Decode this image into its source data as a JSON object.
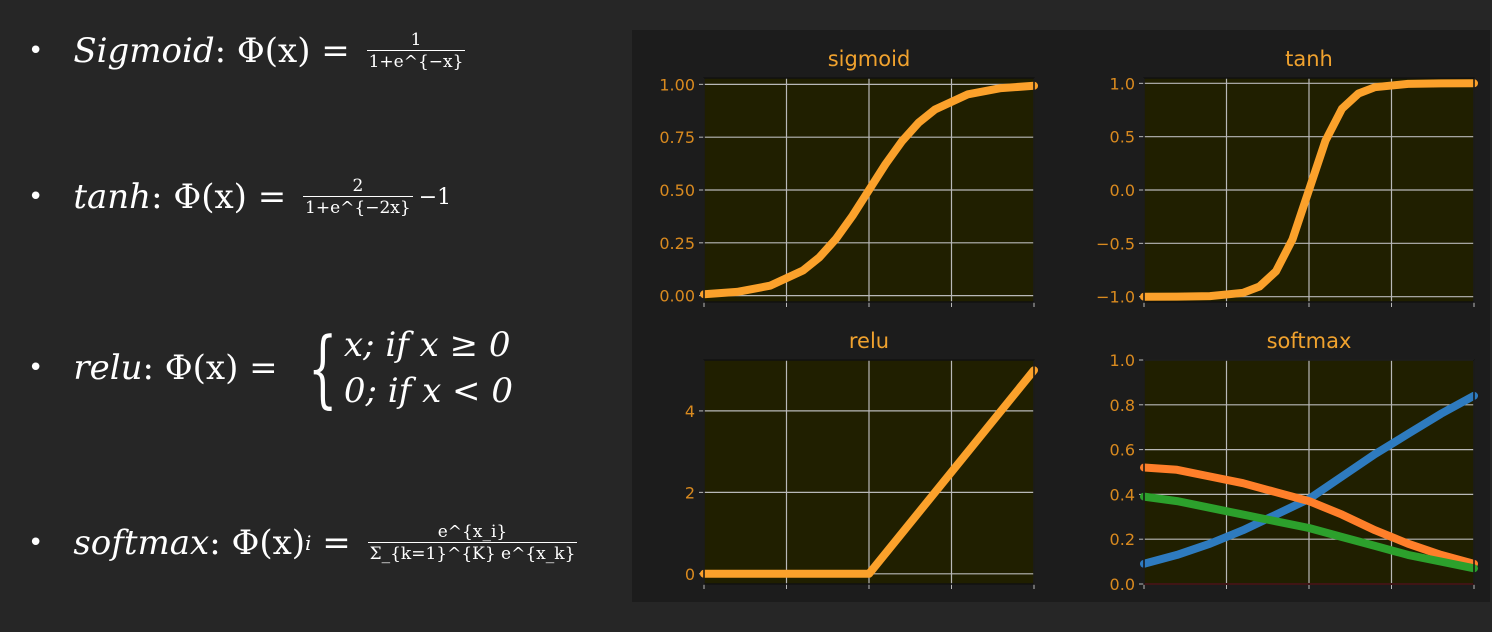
{
  "formulas": {
    "bullet": "•",
    "sigmoid": {
      "label": "Sigmoid",
      "phi": ": Φ(x) = ",
      "num": "1",
      "den": "1+e^{−x}"
    },
    "tanh": {
      "label": "tanh",
      "phi": ": Φ(x) = ",
      "num": "2",
      "den": "1+e^{−2x}",
      "suffix": "−1"
    },
    "relu": {
      "label": "relu",
      "phi": ": Φ(x) = ",
      "case1": "x; if x ≥ 0",
      "case2": "0; if x < 0"
    },
    "softmax": {
      "label": "softmax",
      "phi": ": Φ(x)",
      "sub": "i",
      "eq": " = ",
      "num": "e^{x_i}",
      "den": "Σ_{k=1}^{K} e^{x_k}"
    }
  },
  "colors": {
    "background": "#262626",
    "figure_bg": "#1c1c1c",
    "axes_bg": "#201f00",
    "grid": "#b8b8b8",
    "title_text": "#f0a22e",
    "tick_text": "#d98a1f",
    "orange_line": "#fba12b",
    "blue_line": "#2e7bbf",
    "orange2_line": "#ff7f2a",
    "green_line": "#2ca02c",
    "red_line": "#cc2222"
  },
  "chart_data": [
    {
      "type": "line",
      "title": "sigmoid",
      "xlabel": "",
      "ylabel": "",
      "xlim": [
        -5,
        5
      ],
      "ylim": [
        -0.03,
        1.03
      ],
      "grid": true,
      "yticks": [
        0.0,
        0.25,
        0.5,
        0.75,
        1.0
      ],
      "ytick_labels": [
        "0.00",
        "0.25",
        "0.50",
        "0.75",
        "1.00"
      ],
      "xticks": [
        -5,
        -2.5,
        0,
        2.5,
        5
      ],
      "xtick_labels": [],
      "series": [
        {
          "color": "#fba12b",
          "x": [
            -5,
            -4,
            -3,
            -2,
            -1.5,
            -1,
            -0.5,
            0,
            0.5,
            1,
            1.5,
            2,
            3,
            4,
            5
          ],
          "values": [
            0.007,
            0.018,
            0.047,
            0.119,
            0.182,
            0.269,
            0.378,
            0.5,
            0.622,
            0.731,
            0.818,
            0.881,
            0.953,
            0.982,
            0.993
          ]
        }
      ]
    },
    {
      "type": "line",
      "title": "tanh",
      "xlabel": "",
      "ylabel": "",
      "xlim": [
        -5,
        5
      ],
      "ylim": [
        -1.05,
        1.05
      ],
      "grid": true,
      "yticks": [
        -1.0,
        -0.5,
        0.0,
        0.5,
        1.0
      ],
      "ytick_labels": [
        "−1.0",
        "−0.5",
        "0.0",
        "0.5",
        "1.0"
      ],
      "xticks": [
        -5,
        -2.5,
        0,
        2.5,
        5
      ],
      "xtick_labels": [],
      "series": [
        {
          "color": "#fba12b",
          "x": [
            -5,
            -4,
            -3,
            -2,
            -1.5,
            -1,
            -0.5,
            0,
            0.5,
            1,
            1.5,
            2,
            3,
            4,
            5
          ],
          "values": [
            -1.0,
            -0.999,
            -0.995,
            -0.964,
            -0.905,
            -0.762,
            -0.462,
            0,
            0.462,
            0.762,
            0.905,
            0.964,
            0.995,
            0.999,
            1.0
          ]
        }
      ]
    },
    {
      "type": "line",
      "title": "relu",
      "xlabel": "",
      "ylabel": "",
      "xlim": [
        -5,
        5
      ],
      "ylim": [
        -0.25,
        5.25
      ],
      "grid": true,
      "yticks": [
        0,
        2,
        4
      ],
      "ytick_labels": [
        "0",
        "2",
        "4"
      ],
      "xticks": [
        -5,
        -2.5,
        0,
        2.5,
        5
      ],
      "xtick_labels": [],
      "series": [
        {
          "color": "#fba12b",
          "x": [
            -5,
            0,
            5
          ],
          "values": [
            0,
            0,
            5
          ]
        }
      ]
    },
    {
      "type": "line",
      "title": "softmax",
      "xlabel": "",
      "ylabel": "",
      "xlim": [
        -5,
        5
      ],
      "ylim": [
        0.0,
        1.0
      ],
      "grid": true,
      "yticks": [
        0.0,
        0.2,
        0.4,
        0.6,
        0.8,
        1.0
      ],
      "ytick_labels": [
        "0.0",
        "0.2",
        "0.4",
        "0.6",
        "0.8",
        "1.0"
      ],
      "xticks": [
        -5,
        -2.5,
        0,
        2.5,
        5
      ],
      "xtick_labels": [],
      "series": [
        {
          "color": "#2e7bbf",
          "x": [
            -5,
            -4,
            -3,
            -2,
            -1,
            0,
            1,
            2,
            3,
            4,
            5
          ],
          "values": [
            0.09,
            0.13,
            0.18,
            0.24,
            0.31,
            0.38,
            0.48,
            0.58,
            0.67,
            0.76,
            0.84
          ]
        },
        {
          "color": "#ff7f2a",
          "x": [
            -5,
            -4,
            -3,
            -2,
            -1,
            0,
            1,
            2,
            3,
            4,
            5
          ],
          "values": [
            0.52,
            0.51,
            0.48,
            0.45,
            0.41,
            0.37,
            0.31,
            0.24,
            0.18,
            0.13,
            0.09
          ]
        },
        {
          "color": "#2ca02c",
          "x": [
            -5,
            -4,
            -3,
            -2,
            -1,
            0,
            1,
            2,
            3,
            4,
            5
          ],
          "values": [
            0.39,
            0.37,
            0.34,
            0.31,
            0.28,
            0.25,
            0.21,
            0.17,
            0.13,
            0.1,
            0.07
          ]
        },
        {
          "color": "#cc2222",
          "x": [
            -5,
            5
          ],
          "values": [
            0.0,
            0.0
          ]
        }
      ]
    }
  ]
}
